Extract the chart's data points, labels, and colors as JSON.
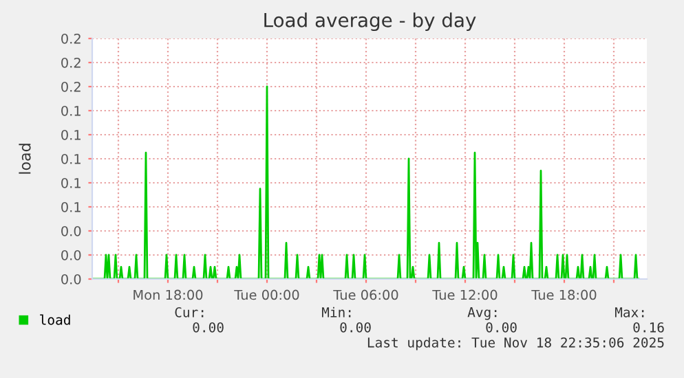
{
  "chart_data": {
    "type": "line",
    "title": "Load average - by day",
    "ylabel": "load",
    "x": [
      "2025-11-17T13:30",
      "2025-11-17T14:10",
      "2025-11-17T14:15",
      "2025-11-17T14:20",
      "2025-11-17T14:25",
      "2025-11-17T14:30",
      "2025-11-17T14:45",
      "2025-11-17T14:50",
      "2025-11-17T14:55",
      "2025-11-17T15:05",
      "2025-11-17T15:10",
      "2025-11-17T15:15",
      "2025-11-17T15:35",
      "2025-11-17T15:40",
      "2025-11-17T15:45",
      "2025-11-17T16:00",
      "2025-11-17T16:05",
      "2025-11-17T16:10",
      "2025-11-17T16:35",
      "2025-11-17T16:40",
      "2025-11-17T16:45",
      "2025-11-17T17:50",
      "2025-11-17T17:55",
      "2025-11-17T18:00",
      "2025-11-17T18:25",
      "2025-11-17T18:30",
      "2025-11-17T18:35",
      "2025-11-17T18:55",
      "2025-11-17T19:00",
      "2025-11-17T19:05",
      "2025-11-17T19:30",
      "2025-11-17T19:35",
      "2025-11-17T19:40",
      "2025-11-17T20:10",
      "2025-11-17T20:15",
      "2025-11-17T20:20",
      "2025-11-17T20:30",
      "2025-11-17T20:35",
      "2025-11-17T20:40",
      "2025-11-17T20:45",
      "2025-11-17T20:50",
      "2025-11-17T20:55",
      "2025-11-17T21:35",
      "2025-11-17T21:40",
      "2025-11-17T21:45",
      "2025-11-17T22:05",
      "2025-11-17T22:10",
      "2025-11-17T22:15",
      "2025-11-17T22:20",
      "2025-11-17T22:25",
      "2025-11-17T22:30",
      "2025-11-17T23:30",
      "2025-11-17T23:35",
      "2025-11-17T23:40",
      "2025-11-17T23:55",
      "2025-11-18T00:00",
      "2025-11-18T00:05",
      "2025-11-18T01:05",
      "2025-11-18T01:10",
      "2025-11-18T01:15",
      "2025-11-18T01:45",
      "2025-11-18T01:50",
      "2025-11-18T01:55",
      "2025-11-18T02:25",
      "2025-11-18T02:30",
      "2025-11-18T02:35",
      "2025-11-18T03:05",
      "2025-11-18T03:10",
      "2025-11-18T03:15",
      "2025-11-18T03:20",
      "2025-11-18T03:25",
      "2025-11-18T03:30",
      "2025-11-18T04:45",
      "2025-11-18T04:50",
      "2025-11-18T04:55",
      "2025-11-18T05:10",
      "2025-11-18T05:15",
      "2025-11-18T05:20",
      "2025-11-18T05:50",
      "2025-11-18T05:55",
      "2025-11-18T06:00",
      "2025-11-18T07:55",
      "2025-11-18T08:00",
      "2025-11-18T08:05",
      "2025-11-18T08:30",
      "2025-11-18T08:35",
      "2025-11-18T08:40",
      "2025-11-18T08:45",
      "2025-11-18T08:50",
      "2025-11-18T08:55",
      "2025-11-18T09:45",
      "2025-11-18T09:50",
      "2025-11-18T09:55",
      "2025-11-18T10:20",
      "2025-11-18T10:25",
      "2025-11-18T10:30",
      "2025-11-18T11:25",
      "2025-11-18T11:30",
      "2025-11-18T11:35",
      "2025-11-18T11:50",
      "2025-11-18T11:55",
      "2025-11-18T12:00",
      "2025-11-18T12:30",
      "2025-11-18T12:35",
      "2025-11-18T12:40",
      "2025-11-18T12:45",
      "2025-11-18T12:50",
      "2025-11-18T13:05",
      "2025-11-18T13:10",
      "2025-11-18T13:15",
      "2025-11-18T13:55",
      "2025-11-18T14:00",
      "2025-11-18T14:05",
      "2025-11-18T14:15",
      "2025-11-18T14:20",
      "2025-11-18T14:25",
      "2025-11-18T14:50",
      "2025-11-18T14:55",
      "2025-11-18T15:00",
      "2025-11-18T15:30",
      "2025-11-18T15:35",
      "2025-11-18T15:40",
      "2025-11-18T15:45",
      "2025-11-18T15:50",
      "2025-11-18T15:55",
      "2025-11-18T16:00",
      "2025-11-18T16:05",
      "2025-11-18T16:30",
      "2025-11-18T16:35",
      "2025-11-18T16:40",
      "2025-11-18T16:50",
      "2025-11-18T16:55",
      "2025-11-18T17:00",
      "2025-11-18T17:30",
      "2025-11-18T17:35",
      "2025-11-18T17:40",
      "2025-11-18T17:50",
      "2025-11-18T17:55",
      "2025-11-18T18:00",
      "2025-11-18T18:05",
      "2025-11-18T18:10",
      "2025-11-18T18:15",
      "2025-11-18T18:45",
      "2025-11-18T18:50",
      "2025-11-18T18:55",
      "2025-11-18T19:00",
      "2025-11-18T19:05",
      "2025-11-18T19:10",
      "2025-11-18T19:30",
      "2025-11-18T19:35",
      "2025-11-18T19:40",
      "2025-11-18T19:45",
      "2025-11-18T19:50",
      "2025-11-18T19:55",
      "2025-11-18T20:30",
      "2025-11-18T20:35",
      "2025-11-18T20:40",
      "2025-11-18T21:20",
      "2025-11-18T21:25",
      "2025-11-18T21:30",
      "2025-11-18T22:15",
      "2025-11-18T22:20",
      "2025-11-18T22:25",
      "2025-11-18T22:30"
    ],
    "series": [
      {
        "name": "load",
        "color": "#00cc00",
        "values": [
          0,
          0,
          0.02,
          0,
          0.02,
          0,
          0,
          0.02,
          0,
          0,
          0.01,
          0,
          0,
          0.01,
          0,
          0,
          0.02,
          0,
          0,
          0.105,
          0,
          0,
          0.02,
          0,
          0,
          0.02,
          0,
          0,
          0.02,
          0,
          0,
          0.01,
          0,
          0,
          0.02,
          0,
          0,
          0.01,
          0,
          0,
          0.01,
          0,
          0,
          0.01,
          0,
          0,
          0.01,
          0,
          0.02,
          0,
          0,
          0,
          0.075,
          0,
          0,
          0.16,
          0,
          0,
          0.03,
          0,
          0,
          0.02,
          0,
          0,
          0.01,
          0,
          0,
          0.02,
          0,
          0.02,
          0,
          0,
          0,
          0.02,
          0,
          0,
          0.02,
          0,
          0,
          0.02,
          0,
          0,
          0.02,
          0,
          0,
          0.1,
          0,
          0,
          0.01,
          0,
          0,
          0.02,
          0,
          0,
          0.03,
          0,
          0,
          0.03,
          0,
          0,
          0.01,
          0,
          0,
          0.105,
          0,
          0.03,
          0,
          0,
          0.02,
          0,
          0,
          0.02,
          0,
          0,
          0.01,
          0,
          0,
          0.02,
          0,
          0,
          0.01,
          0,
          0,
          0.01,
          0,
          0.03,
          0,
          0,
          0.09,
          0,
          0,
          0.01,
          0,
          0,
          0.02,
          0,
          0,
          0.02,
          0,
          0,
          0.02,
          0,
          0,
          0.01,
          0,
          0,
          0.02,
          0,
          0,
          0.01,
          0,
          0,
          0.02,
          0,
          0,
          0.01,
          0,
          0,
          0.02,
          0,
          0,
          0.02,
          0,
          0
        ]
      }
    ],
    "xlim": [
      "2025-11-17T13:25",
      "2025-11-18T23:00"
    ],
    "xticks": [
      {
        "value": "2025-11-17T15:00",
        "label": null
      },
      {
        "value": "2025-11-17T18:00",
        "label": "Mon 18:00"
      },
      {
        "value": "2025-11-17T21:00",
        "label": null
      },
      {
        "value": "2025-11-18T00:00",
        "label": "Tue 00:00"
      },
      {
        "value": "2025-11-18T03:00",
        "label": null
      },
      {
        "value": "2025-11-18T06:00",
        "label": "Tue 06:00"
      },
      {
        "value": "2025-11-18T09:00",
        "label": null
      },
      {
        "value": "2025-11-18T12:00",
        "label": "Tue 12:00"
      },
      {
        "value": "2025-11-18T15:00",
        "label": null
      },
      {
        "value": "2025-11-18T18:00",
        "label": "Tue 18:00"
      },
      {
        "value": "2025-11-18T21:00",
        "label": null
      }
    ],
    "ylim": [
      0,
      0.2
    ],
    "yticks": [
      {
        "value": 0,
        "label": "0.0"
      },
      {
        "value": 0.02,
        "label": "0.0"
      },
      {
        "value": 0.04,
        "label": "0.0"
      },
      {
        "value": 0.06,
        "label": "0.1"
      },
      {
        "value": 0.08,
        "label": "0.1"
      },
      {
        "value": 0.1,
        "label": "0.1"
      },
      {
        "value": 0.12,
        "label": "0.1"
      },
      {
        "value": 0.14,
        "label": "0.1"
      },
      {
        "value": 0.16,
        "label": "0.2"
      },
      {
        "value": 0.18,
        "label": "0.2"
      },
      {
        "value": 0.2,
        "label": "0.2"
      }
    ],
    "grid": true,
    "legend": "bottom left",
    "marker": "none",
    "line_style": "solid",
    "annotations": [
      "Cur:",
      "Min:",
      "Avg:",
      "Max:",
      "0.00",
      "0.00",
      "0.00",
      "0.16",
      "Last update: Tue Nov 18 22:35:06 2025"
    ]
  }
}
